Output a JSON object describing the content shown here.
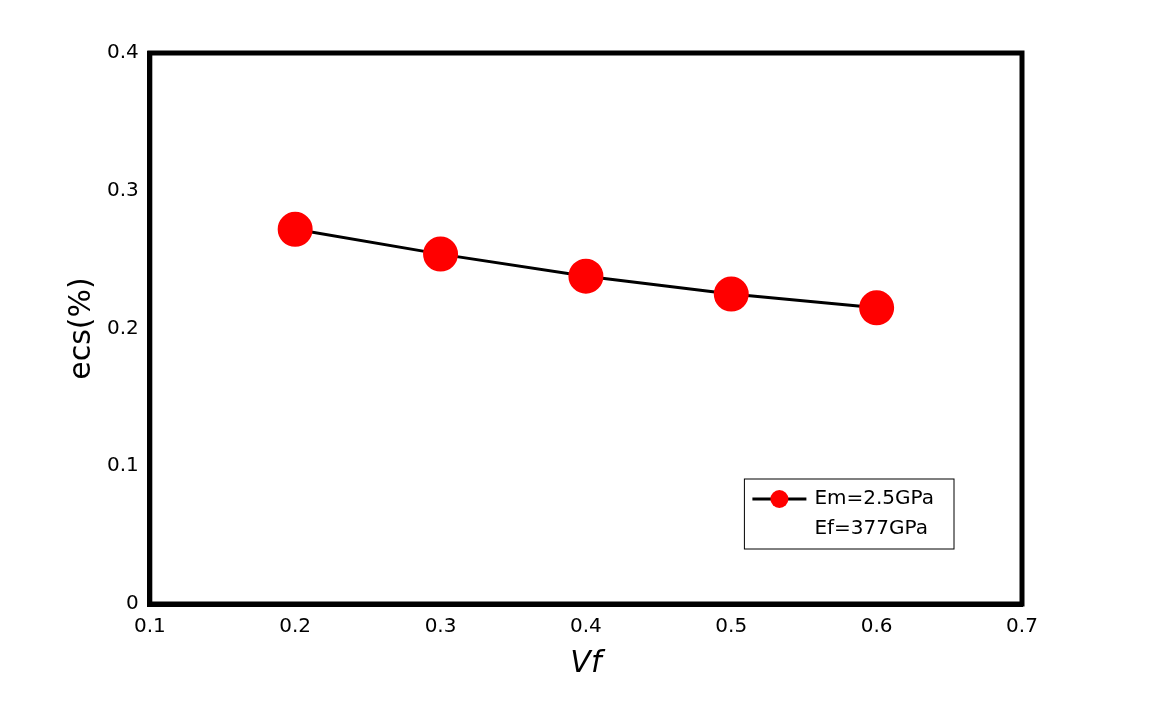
{
  "chart_data": {
    "type": "line",
    "x_label": "Vf",
    "y_label": "ecs(%)",
    "series": [
      {
        "name": "Em=2.5GPa\nEf=377GPa",
        "color": "#ff0000",
        "marker": "circle",
        "line_style": "solid",
        "x": [
          0.2,
          0.3,
          0.4,
          0.5,
          0.6
        ],
        "values": [
          0.272,
          0.254,
          0.238,
          0.225,
          0.215
        ]
      }
    ],
    "xlim": [
      0.1,
      0.7
    ],
    "xticks": [
      0.1,
      0.2,
      0.3,
      0.4,
      0.5,
      0.6,
      0.7
    ],
    "ylim": [
      0,
      0.4
    ],
    "yticks": [
      0,
      0.1,
      0.2,
      0.3,
      0.4
    ],
    "grid": false,
    "legend": "lower right"
  }
}
